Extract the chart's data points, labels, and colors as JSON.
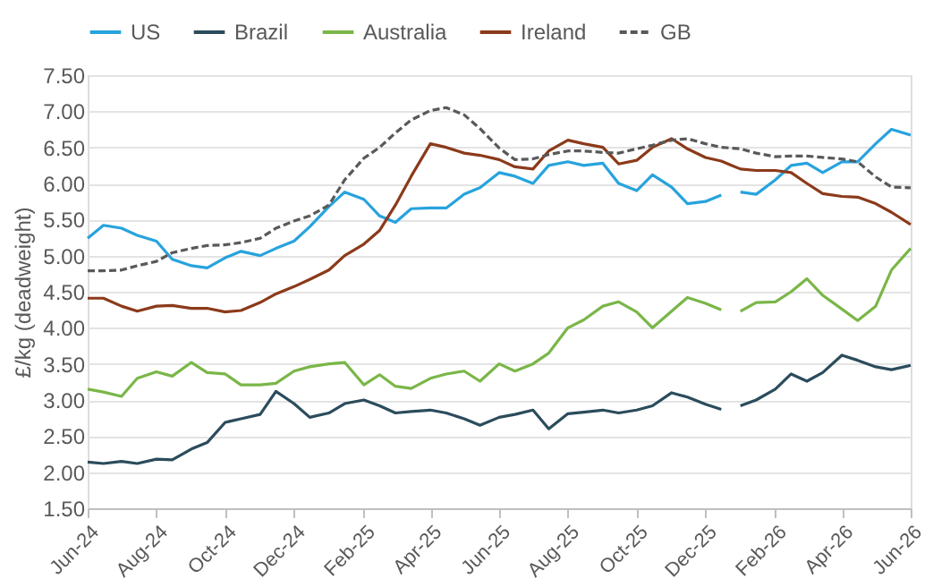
{
  "chart_data": {
    "type": "line",
    "ylabel": "£/kg (deadweight)",
    "x": [
      "2024-06-01",
      "2024-06-15",
      "2024-07-01",
      "2024-07-15",
      "2024-08-01",
      "2024-08-15",
      "2024-09-01",
      "2024-09-15",
      "2024-10-01",
      "2024-10-15",
      "2024-11-01",
      "2024-11-15",
      "2024-12-01",
      "2024-12-15",
      "2025-01-01",
      "2025-01-15",
      "2025-02-01",
      "2025-02-15",
      "2025-03-01",
      "2025-03-15",
      "2025-04-01",
      "2025-04-15",
      "2025-05-01",
      "2025-05-15",
      "2025-06-01",
      "2025-06-15",
      "2025-07-01",
      "2025-07-15",
      "2025-08-01",
      "2025-08-15",
      "2025-09-01",
      "2025-09-15",
      "2025-10-01",
      "2025-10-15",
      "2025-11-01",
      "2025-11-15",
      "2025-12-01",
      "2025-12-15",
      "2025-12-24",
      "2026-01-01",
      "2026-01-15",
      "2026-02-01",
      "2026-02-15",
      "2026-03-01",
      "2026-03-15",
      "2026-04-01",
      "2026-04-15",
      "2026-05-01",
      "2026-05-15",
      "2026-06-01"
    ],
    "series": [
      {
        "name": "US",
        "color": "#27a3dd",
        "line_style": "solid",
        "values": [
          5.24,
          5.42,
          5.38,
          5.28,
          5.2,
          4.95,
          4.86,
          4.83,
          4.97,
          5.06,
          5.0,
          5.1,
          5.2,
          5.4,
          5.68,
          5.88,
          5.78,
          5.55,
          5.46,
          5.65,
          5.66,
          5.66,
          5.85,
          5.94,
          6.15,
          6.1,
          6.0,
          6.25,
          6.3,
          6.25,
          6.28,
          6.0,
          5.9,
          6.12,
          5.95,
          5.72,
          5.75,
          5.84,
          null,
          5.88,
          5.85,
          6.05,
          6.25,
          6.28,
          6.15,
          6.3,
          6.3,
          6.55,
          6.75,
          6.67
        ]
      },
      {
        "name": "Brazil",
        "color": "#2b4c5c",
        "line_style": "solid",
        "values": [
          2.14,
          2.12,
          2.15,
          2.12,
          2.18,
          2.17,
          2.32,
          2.41,
          2.69,
          2.74,
          2.8,
          3.12,
          2.95,
          2.76,
          2.82,
          2.95,
          3.0,
          2.92,
          2.82,
          2.84,
          2.86,
          2.82,
          2.74,
          2.65,
          2.76,
          2.8,
          2.86,
          2.6,
          2.81,
          2.83,
          2.86,
          2.82,
          2.86,
          2.92,
          3.1,
          3.04,
          2.94,
          2.87,
          null,
          2.92,
          3.0,
          3.15,
          3.36,
          3.26,
          3.38,
          3.62,
          3.55,
          3.46,
          3.42,
          3.48
        ]
      },
      {
        "name": "Australia",
        "color": "#7ab648",
        "line_style": "solid",
        "values": [
          3.15,
          3.11,
          3.05,
          3.3,
          3.39,
          3.33,
          3.52,
          3.38,
          3.36,
          3.21,
          3.21,
          3.23,
          3.4,
          3.46,
          3.5,
          3.52,
          3.21,
          3.35,
          3.19,
          3.16,
          3.3,
          3.36,
          3.4,
          3.26,
          3.5,
          3.4,
          3.5,
          3.65,
          4.0,
          4.11,
          4.3,
          4.36,
          4.22,
          4.0,
          4.23,
          4.42,
          4.34,
          4.25,
          null,
          4.23,
          4.35,
          4.36,
          4.5,
          4.68,
          4.45,
          4.26,
          4.1,
          4.3,
          4.8,
          5.1
        ]
      },
      {
        "name": "Ireland",
        "color": "#8b3a1a",
        "line_style": "solid",
        "values": [
          4.41,
          4.41,
          4.3,
          4.23,
          4.3,
          4.31,
          4.27,
          4.27,
          4.22,
          4.24,
          4.35,
          4.47,
          4.57,
          4.67,
          4.8,
          5.0,
          5.16,
          5.35,
          5.7,
          6.1,
          6.55,
          6.5,
          6.42,
          6.39,
          6.33,
          6.23,
          6.2,
          6.45,
          6.6,
          6.55,
          6.5,
          6.27,
          6.32,
          6.5,
          6.62,
          6.48,
          6.36,
          6.31,
          6.25,
          6.2,
          6.18,
          6.18,
          6.15,
          6.0,
          5.86,
          5.82,
          5.81,
          5.72,
          5.6,
          5.43
        ]
      },
      {
        "name": "GB",
        "color": "#595959",
        "line_style": "dashed",
        "values": [
          4.79,
          4.79,
          4.8,
          4.86,
          4.92,
          5.04,
          5.1,
          5.14,
          5.15,
          5.18,
          5.24,
          5.38,
          5.48,
          5.55,
          5.7,
          6.05,
          6.35,
          6.5,
          6.7,
          6.88,
          7.01,
          7.05,
          6.95,
          6.76,
          6.49,
          6.33,
          6.34,
          6.4,
          6.45,
          6.45,
          6.43,
          6.42,
          6.48,
          6.53,
          6.6,
          6.62,
          6.55,
          6.5,
          6.49,
          6.48,
          6.42,
          6.37,
          6.38,
          6.38,
          6.36,
          6.34,
          6.3,
          6.09,
          5.95,
          5.94
        ]
      }
    ],
    "xlim": [
      "2024-06-01",
      "2026-06-01"
    ],
    "xticks": [
      {
        "value": "2024-06-01",
        "label": "Jun-24"
      },
      {
        "value": "2024-08-01",
        "label": "Aug-24"
      },
      {
        "value": "2024-10-01",
        "label": "Oct-24"
      },
      {
        "value": "2024-12-01",
        "label": "Dec-24"
      },
      {
        "value": "2025-02-01",
        "label": "Feb-25"
      },
      {
        "value": "2025-04-01",
        "label": "Apr-25"
      },
      {
        "value": "2025-06-01",
        "label": "Jun-25"
      },
      {
        "value": "2025-08-01",
        "label": "Aug-25"
      },
      {
        "value": "2025-10-01",
        "label": "Oct-25"
      },
      {
        "value": "2025-12-01",
        "label": "Dec-25"
      },
      {
        "value": "2026-02-01",
        "label": "Feb-26"
      },
      {
        "value": "2026-04-01",
        "label": "Apr-26"
      },
      {
        "value": "2026-06-01",
        "label": "Jun-26"
      }
    ],
    "ylim": [
      1.5,
      7.5
    ],
    "yticks": [
      {
        "value": 1.5,
        "label": "1.50"
      },
      {
        "value": 2,
        "label": "2.00"
      },
      {
        "value": 2.5,
        "label": "2.50"
      },
      {
        "value": 3,
        "label": "3.00"
      },
      {
        "value": 3.5,
        "label": "3.50"
      },
      {
        "value": 4,
        "label": "4.00"
      },
      {
        "value": 4.5,
        "label": "4.50"
      },
      {
        "value": 5,
        "label": "5.00"
      },
      {
        "value": 5.5,
        "label": "5.50"
      },
      {
        "value": 6,
        "label": "6.00"
      },
      {
        "value": 6.5,
        "label": "6.50"
      },
      {
        "value": 7,
        "label": "7.00"
      },
      {
        "value": 7.5,
        "label": "7.50"
      }
    ],
    "grid": "y",
    "legend": "top",
    "marker": "none"
  }
}
